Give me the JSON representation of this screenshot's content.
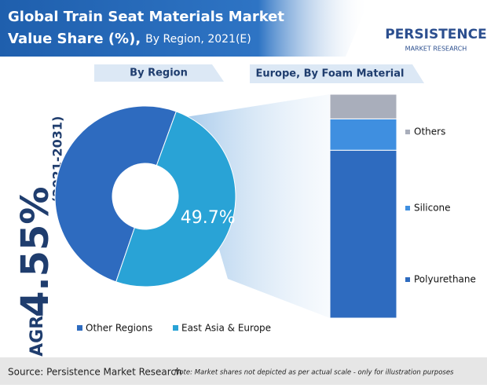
{
  "header": {
    "title_line1": "Global Train Seat Materials Market",
    "title_line2": "Value Share (%),",
    "subtitle": "By Region, 2021(E)",
    "logo_name": "PERSISTENCE",
    "logo_tagline": "MARKET RESEARCH"
  },
  "cagr": {
    "prefix": "CAGR",
    "value": "4.55%",
    "period": "(2021-2031)"
  },
  "chart_data": [
    {
      "type": "donut",
      "title": "By Region",
      "categories": [
        "Other Regions",
        "East Asia & Europe"
      ],
      "values": [
        50.3,
        49.7
      ],
      "value_labels": [
        null,
        "49.7%"
      ],
      "colors": [
        "#2e6bbf",
        "#29a3d6"
      ]
    },
    {
      "type": "stacked-bar",
      "title": "Europe, By Foam Material",
      "series": [
        {
          "name": "Polyurethane",
          "color": "#2e6bbf",
          "values": [
            75
          ]
        },
        {
          "name": "Silicone",
          "color": "#3f8fe0",
          "values": [
            14
          ]
        },
        {
          "name": "Others",
          "color": "#a9aebb",
          "values": [
            11
          ]
        }
      ]
    }
  ],
  "footer": {
    "source": "Source: Persistence Market Research",
    "note": "Note: Market shares not depicted as per actual scale - only for illustration purposes"
  }
}
